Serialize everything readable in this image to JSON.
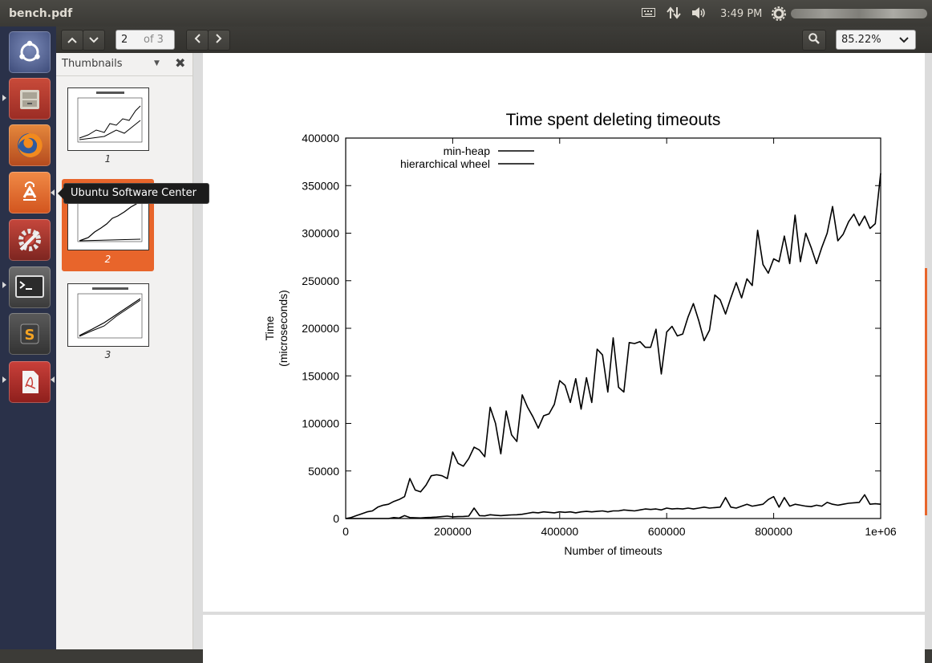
{
  "window": {
    "title": "bench.pdf"
  },
  "tray": {
    "clock": "3:49 PM"
  },
  "launcher": {
    "tooltip": "Ubuntu Software Center"
  },
  "toolbar": {
    "page_current": "2",
    "page_of": "of 3",
    "zoom": "85.22%"
  },
  "sidebar": {
    "title": "Thumbnails",
    "thumbnails": [
      {
        "label": "1"
      },
      {
        "label": "2"
      },
      {
        "label": "3"
      }
    ]
  },
  "chart_data": {
    "type": "line",
    "title": "Time spent deleting timeouts",
    "xlabel": "Number of timeouts",
    "ylabel_lines": [
      "Time",
      "(microseconds)"
    ],
    "xlim": [
      0,
      1000000
    ],
    "ylim": [
      0,
      400000
    ],
    "xticks": [
      "0",
      "200000",
      "400000",
      "600000",
      "800000",
      "1e+06"
    ],
    "yticks": [
      "0",
      "50000",
      "100000",
      "150000",
      "200000",
      "250000",
      "300000",
      "350000",
      "400000"
    ],
    "legend_placement": "top-left",
    "series": [
      {
        "name": "min-heap",
        "x": [
          0,
          10000,
          20000,
          30000,
          40000,
          50000,
          60000,
          70000,
          80000,
          90000,
          100000,
          110000,
          120000,
          130000,
          140000,
          150000,
          160000,
          170000,
          180000,
          190000,
          200000,
          210000,
          220000,
          230000,
          240000,
          250000,
          260000,
          270000,
          280000,
          290000,
          300000,
          310000,
          320000,
          330000,
          340000,
          350000,
          360000,
          370000,
          380000,
          390000,
          400000,
          410000,
          420000,
          430000,
          440000,
          450000,
          460000,
          470000,
          480000,
          490000,
          500000,
          510000,
          520000,
          530000,
          540000,
          550000,
          560000,
          570000,
          580000,
          590000,
          600000,
          610000,
          620000,
          630000,
          640000,
          650000,
          660000,
          670000,
          680000,
          690000,
          700000,
          710000,
          720000,
          730000,
          740000,
          750000,
          760000,
          770000,
          780000,
          790000,
          800000,
          810000,
          820000,
          830000,
          840000,
          850000,
          860000,
          870000,
          880000,
          890000,
          900000,
          910000,
          920000,
          930000,
          940000,
          950000,
          960000,
          970000,
          980000,
          990000,
          1000000
        ],
        "y": [
          0,
          0,
          0,
          0,
          0,
          0,
          0,
          0,
          0,
          1000,
          500,
          3000,
          1000,
          800,
          600,
          1000,
          1200,
          1500,
          2000,
          2500,
          1800,
          2000,
          2200,
          2500,
          11000,
          3000,
          2800,
          4000,
          3500,
          3000,
          3500,
          3800,
          4000,
          4500,
          5500,
          6500,
          6000,
          7000,
          6500,
          6000,
          7000,
          6500,
          7000,
          6000,
          7000,
          7500,
          7000,
          7500,
          8000,
          7000,
          8000,
          8000,
          9000,
          8500,
          8000,
          9000,
          10000,
          9500,
          10000,
          9000,
          11000,
          10000,
          10500,
          10000,
          11000,
          10000,
          11000,
          12000,
          11000,
          11500,
          12000,
          22000,
          12000,
          11000,
          13000,
          15000,
          13000,
          14000,
          15000,
          20000,
          23000,
          12000,
          22000,
          13000,
          15000,
          14000,
          13000,
          12500,
          14000,
          13000,
          17000,
          15000,
          14000,
          15000,
          16000,
          16500,
          17000,
          25000,
          15000,
          15500,
          15000
        ]
      },
      {
        "name": "hierarchical wheel",
        "x": [
          0,
          10000,
          20000,
          30000,
          40000,
          50000,
          60000,
          70000,
          80000,
          90000,
          100000,
          110000,
          120000,
          130000,
          140000,
          150000,
          160000,
          170000,
          180000,
          190000,
          200000,
          210000,
          220000,
          230000,
          240000,
          250000,
          260000,
          270000,
          280000,
          290000,
          300000,
          310000,
          320000,
          330000,
          340000,
          350000,
          360000,
          370000,
          380000,
          390000,
          400000,
          410000,
          420000,
          430000,
          440000,
          450000,
          460000,
          470000,
          480000,
          490000,
          500000,
          510000,
          520000,
          530000,
          540000,
          550000,
          560000,
          570000,
          580000,
          590000,
          600000,
          610000,
          620000,
          630000,
          640000,
          650000,
          660000,
          670000,
          680000,
          690000,
          700000,
          710000,
          720000,
          730000,
          740000,
          750000,
          760000,
          770000,
          780000,
          790000,
          800000,
          810000,
          820000,
          830000,
          840000,
          850000,
          860000,
          870000,
          880000,
          890000,
          900000,
          910000,
          920000,
          930000,
          940000,
          950000,
          960000,
          970000,
          980000,
          990000,
          1000000
        ],
        "y": [
          0,
          1000,
          3000,
          5000,
          7000,
          8000,
          12000,
          14000,
          15000,
          18000,
          20000,
          23000,
          42000,
          30000,
          28000,
          35000,
          45000,
          46000,
          45000,
          42000,
          70000,
          58000,
          55000,
          63000,
          75000,
          72000,
          65000,
          117000,
          100000,
          68000,
          113000,
          88000,
          81000,
          130000,
          117000,
          107000,
          95000,
          108000,
          110000,
          120000,
          145000,
          140000,
          122000,
          147000,
          115000,
          148000,
          122000,
          178000,
          172000,
          133000,
          190000,
          138000,
          133000,
          185000,
          184000,
          186000,
          180000,
          180000,
          199000,
          152000,
          196000,
          202000,
          192000,
          194000,
          212000,
          226000,
          208000,
          187000,
          198000,
          235000,
          230000,
          215000,
          232000,
          248000,
          232000,
          252000,
          245000,
          303000,
          267000,
          258000,
          273000,
          270000,
          297000,
          268000,
          319000,
          270000,
          300000,
          285000,
          268000,
          285000,
          300000,
          328000,
          292000,
          299000,
          312000,
          320000,
          308000,
          318000,
          305000,
          310000,
          363000
        ]
      }
    ]
  }
}
